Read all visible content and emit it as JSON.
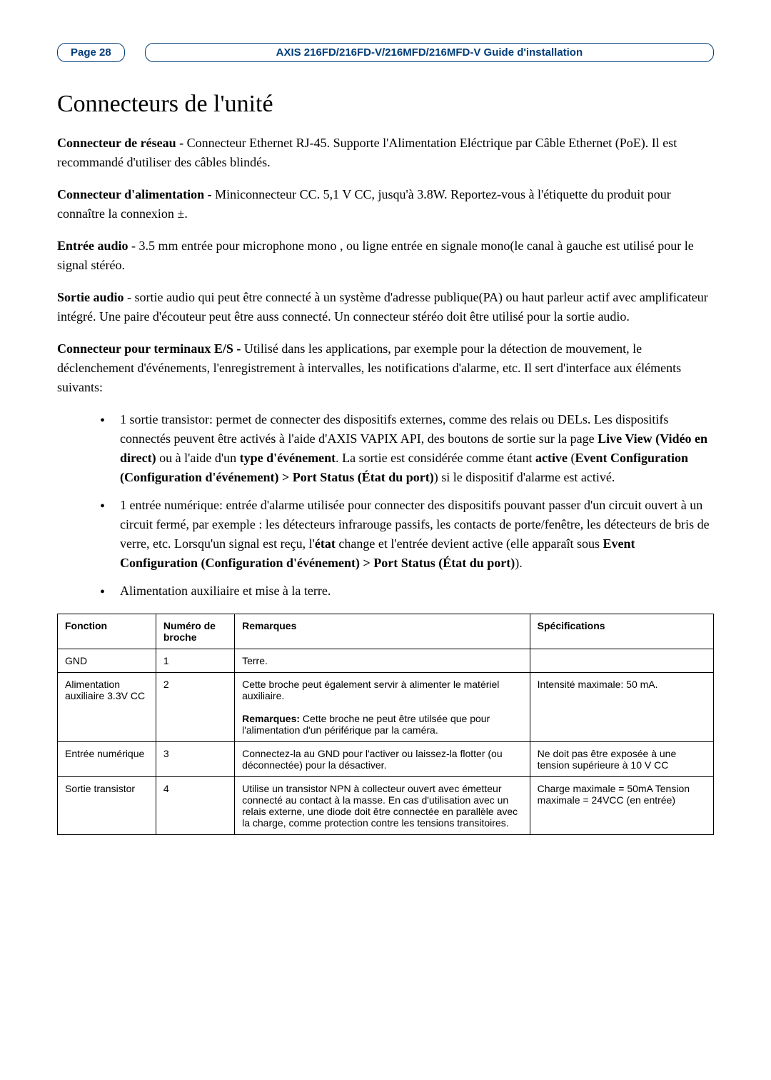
{
  "header": {
    "page_label": "Page 28",
    "doc_title": "AXIS 216FD/216FD-V/216MFD/216MFD-V Guide d'installation"
  },
  "title": "Connecteurs de l'unité",
  "paragraphs": {
    "p1_label": "Connecteur de réseau - ",
    "p1_text": "Connecteur Ethernet RJ-45. Supporte l'Alimentation Eléctrique par Câble Ethernet (PoE). Il est recommandé d'utiliser des câbles blindés.",
    "p2_label": "Connecteur d'alimentation - ",
    "p2_text": "Miniconnecteur CC. 5,1 V CC, jusqu'à 3.8W. Reportez-vous à l'étiquette du produit pour connaître la connexion ±.",
    "p3_label": "Entrée audio",
    "p3_text": " - 3.5 mm entrée pour microphone mono , ou ligne entrée en signale mono(le canal à gauche est utilisé pour le signal stéréo.",
    "p4_label": "Sortie audio",
    "p4_text": " -  sortie audio qui peut être connecté à un système d'adresse publique(PA) ou haut parleur actif avec amplificateur intégré. Une paire d'écouteur peut être auss connecté. Un connecteur stéréo doit être utilisé pour la sortie audio.",
    "p5_label": "Connecteur pour terminaux E/S - ",
    "p5_text": "Utilisé dans les applications, par exemple pour la détection de mouvement, le déclenchement d'événements, l'enregistrement à intervalles, les notifications d'alarme, etc. Il sert d'interface aux éléments suivants:"
  },
  "bullets": {
    "b1_a": "1 sortie transistor: permet de connecter des dispositifs externes, comme des relais ou DELs. Les dispositifs connectés peuvent être activés à l'aide d'AXIS VAPIX API, des boutons de sortie sur la page ",
    "b1_bold1": "Live View (Vidéo en direct)",
    "b1_b": " ou à l'aide d'un ",
    "b1_bold2": "type d'événement",
    "b1_c": ". La sortie est considérée comme étant ",
    "b1_bold3": "active",
    "b1_d": " (",
    "b1_bold4": "Event Configuration (Configuration d'événement) > Port Status (État du port)",
    "b1_e": ") si le dispositif d'alarme est activé.",
    "b2_a": "1 entrée numérique: entrée d'alarme utilisée pour connecter des dispositifs pouvant passer d'un circuit ouvert à un circuit fermé, par exemple : les détecteurs infrarouge passifs, les contacts de porte/fenêtre, les détecteurs de bris de verre, etc. Lorsqu'un signal est reçu, l'",
    "b2_bold1": "état",
    "b2_b": " change et l'entrée devient active (elle apparaît sous ",
    "b2_bold2": "Event Configuration (Configuration d'événement) > Port Status (État du port)",
    "b2_c": ").",
    "b3": "Alimentation auxiliaire et mise à la terre."
  },
  "table": {
    "headers": {
      "fonction": "Fonction",
      "broche": "Numéro de broche",
      "remarques": "Remarques",
      "spec": "Spécifications"
    },
    "rows": [
      {
        "fonction": "GND",
        "broche": "1",
        "remarques": "Terre.",
        "spec": ""
      },
      {
        "fonction": "Alimentation auxiliaire 3.3V CC",
        "broche": "2",
        "remarques_a": "Cette broche peut également servir à alimenter le matériel auxiliaire.",
        "remarques_bold": "Remarques:",
        "remarques_b": " Cette broche ne peut être utilsée que pour l'alimentation d'un périférique par la caméra.",
        "spec": "Intensité maximale: 50 mA."
      },
      {
        "fonction": "Entrée numérique",
        "broche": "3",
        "remarques": "Connectez-la au GND pour l'activer ou laissez-la flotter (ou déconnectée) pour la désactiver.",
        "spec": "Ne doit pas être exposée à une tension supérieure à 10 V CC"
      },
      {
        "fonction": "Sortie transistor",
        "broche": "4",
        "remarques": "Utilise un transistor NPN à collecteur ouvert avec émetteur connecté au contact à la masse. En cas d'utilisation avec un relais externe, une diode doit être connectée en parallèle avec la charge, comme protection contre les tensions transitoires.",
        "spec": "Charge maximale = 50mA Tension maximale = 24VCC (en entrée)"
      }
    ]
  }
}
